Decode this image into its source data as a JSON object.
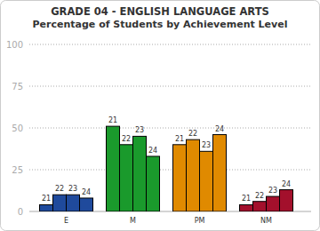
{
  "chart_data": {
    "type": "bar",
    "title": "GRADE 04 - ENGLISH LANGUAGE ARTS",
    "subtitle": "Percentage of Students by Achievement Level",
    "categories": [
      "E",
      "M",
      "PM",
      "NM"
    ],
    "colors": [
      "#1f4a9c",
      "#1a9a2c",
      "#e08a00",
      "#a3102c"
    ],
    "series": [
      {
        "name": "21",
        "values": [
          4,
          51,
          40,
          4
        ]
      },
      {
        "name": "22",
        "values": [
          10,
          40,
          43,
          6
        ]
      },
      {
        "name": "23",
        "values": [
          10,
          45,
          36,
          9
        ]
      },
      {
        "name": "24",
        "values": [
          8,
          33,
          46,
          13
        ]
      }
    ],
    "ylim": [
      0,
      100
    ],
    "yticks": [
      0,
      25,
      50,
      75,
      100
    ],
    "grid": true
  }
}
